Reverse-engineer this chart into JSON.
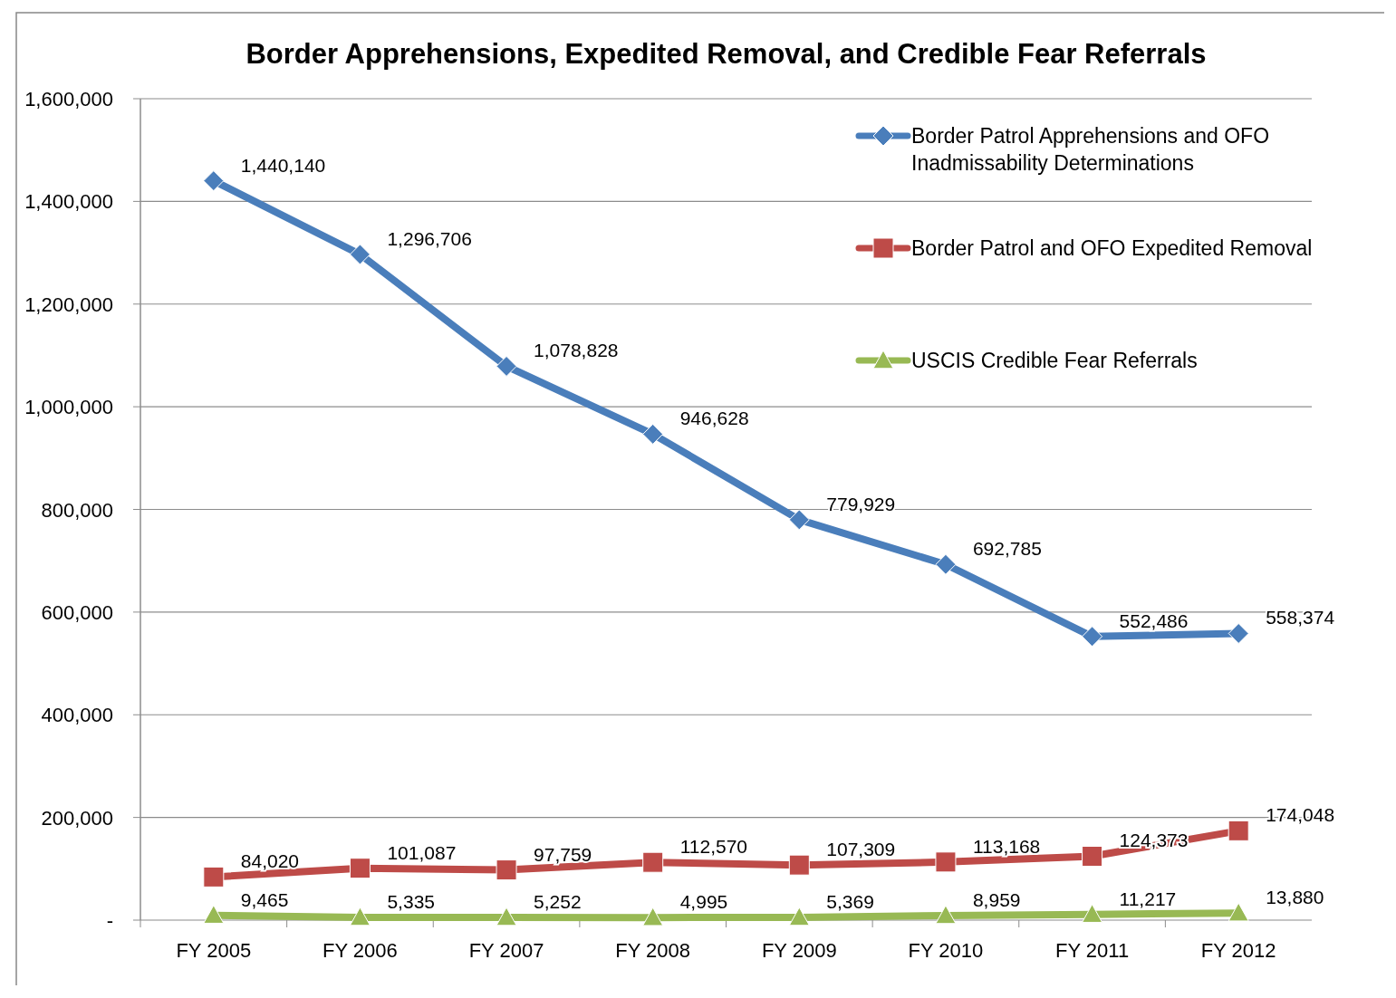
{
  "chart_data": {
    "type": "line",
    "title": "Border Apprehensions, Expedited Removal, and Credible Fear Referrals",
    "categories": [
      "FY 2005",
      "FY 2006",
      "FY 2007",
      "FY 2008",
      "FY 2009",
      "FY 2010",
      "FY 2011",
      "FY 2012"
    ],
    "series": [
      {
        "name": "Border Patrol Apprehensions and OFO Inadmissability Determinations",
        "color": "#4a7ebb",
        "marker": "diamond",
        "values": [
          1440140,
          1296706,
          1078828,
          946628,
          779929,
          692785,
          552486,
          558374
        ],
        "value_labels": [
          "1,440,140",
          "1,296,706",
          "1,078,828",
          "946,628",
          "779,929",
          "692,785",
          "552,486",
          "558,374"
        ]
      },
      {
        "name": "Border Patrol and OFO Expedited Removal",
        "color": "#be4b48",
        "marker": "square",
        "values": [
          84020,
          101087,
          97759,
          112570,
          107309,
          113168,
          124373,
          174048
        ],
        "value_labels": [
          "84,020",
          "101,087",
          "97,759",
          "112,570",
          "107,309",
          "113,168",
          "124,373",
          "174,048"
        ]
      },
      {
        "name": "USCIS Credible Fear Referrals",
        "color": "#98b954",
        "marker": "triangle",
        "values": [
          9465,
          5335,
          5252,
          4995,
          5369,
          8959,
          11217,
          13880
        ],
        "value_labels": [
          "9,465",
          "5,335",
          "5,252",
          "4,995",
          "5,369",
          "8,959",
          "11,217",
          "13,880"
        ]
      }
    ],
    "ylim": [
      0,
      1600000
    ],
    "yticks": [
      {
        "value": 0,
        "label": "-"
      },
      {
        "value": 200000,
        "label": "200,000"
      },
      {
        "value": 400000,
        "label": "400,000"
      },
      {
        "value": 600000,
        "label": "600,000"
      },
      {
        "value": 800000,
        "label": "800,000"
      },
      {
        "value": 1000000,
        "label": "1,000,000"
      },
      {
        "value": 1200000,
        "label": "1,200,000"
      },
      {
        "value": 1400000,
        "label": "1,400,000"
      },
      {
        "value": 1600000,
        "label": "1,600,000"
      }
    ],
    "grid": "y",
    "legend": "top right",
    "line_style": "solid"
  }
}
